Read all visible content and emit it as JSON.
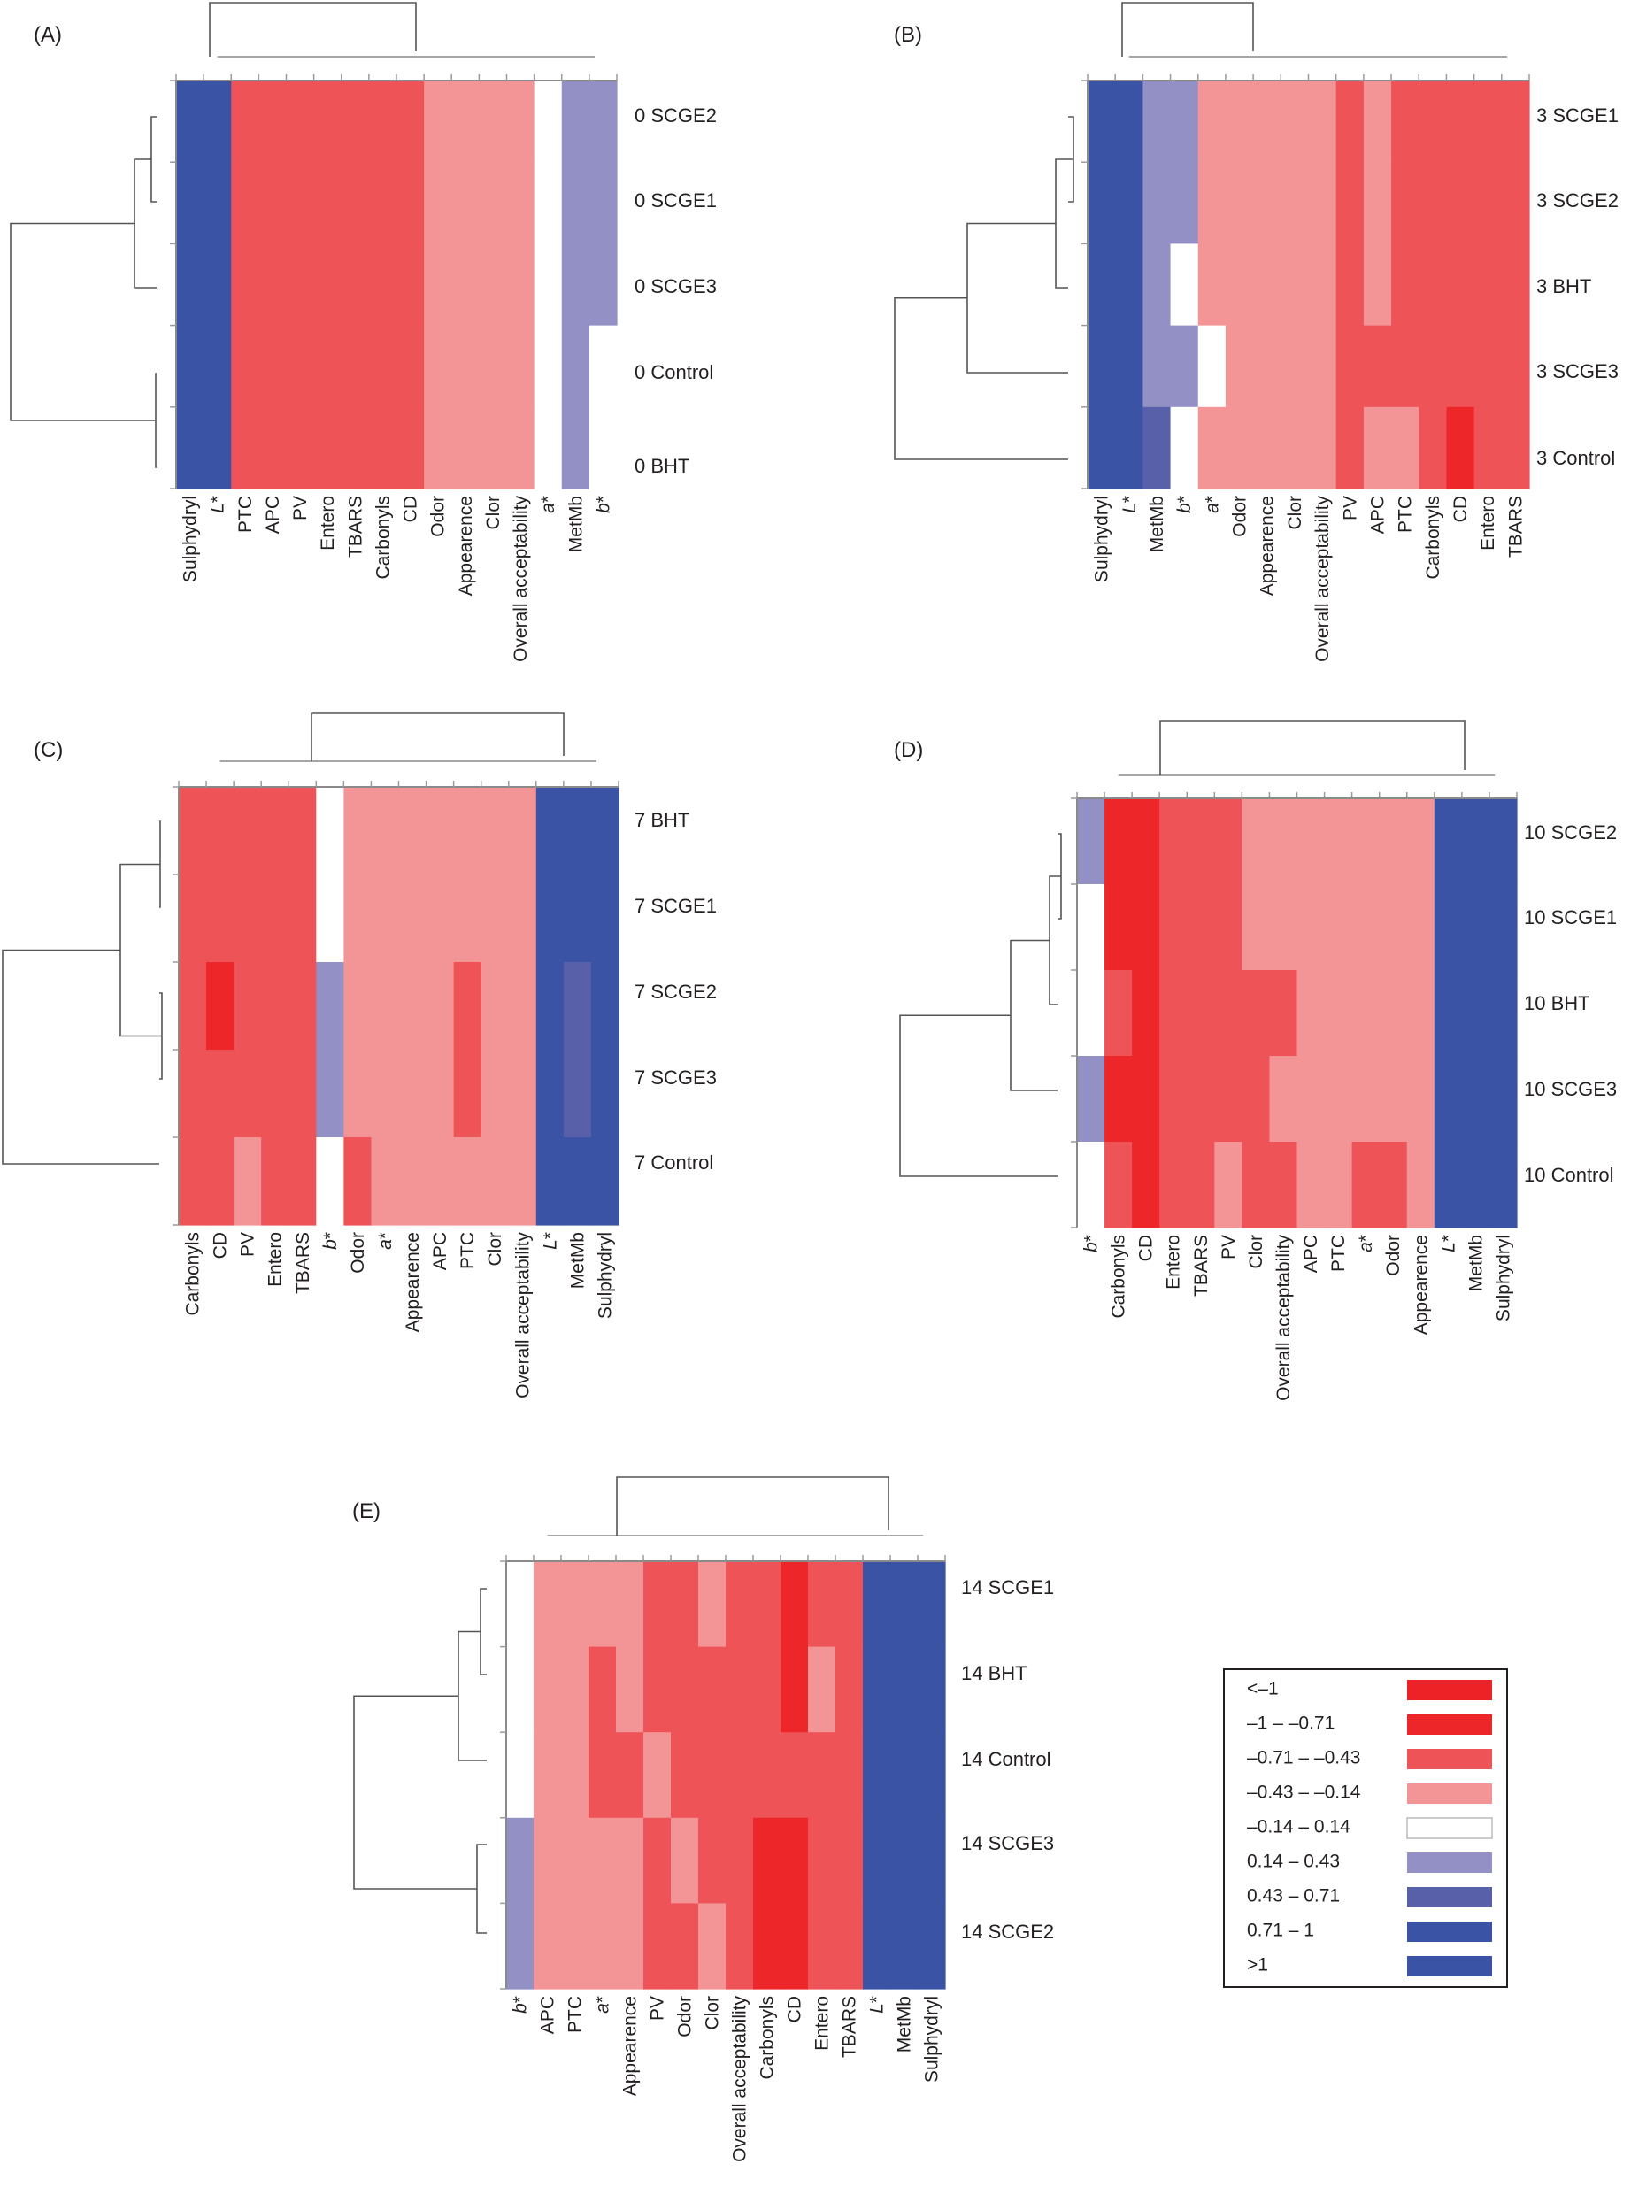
{
  "legend": {
    "bins": [
      {
        "label": "<–1",
        "color": "#ec2227"
      },
      {
        "label": "–1 – –0.71",
        "color": "#ec2629"
      },
      {
        "label": "–0.71 – –0.43",
        "color": "#ee5357"
      },
      {
        "label": "–0.43 – –0.14",
        "color": "#f39496"
      },
      {
        "label": "–0.14 – 0.14",
        "color": "#ffffff"
      },
      {
        "label": "0.14 – 0.43",
        "color": "#9390c6"
      },
      {
        "label": "0.43 – 0.71",
        "color": "#5760a9"
      },
      {
        "label": "0.71 – 1",
        "color": "#3a53a4"
      },
      {
        "label": ">1",
        "color": "#3a53a4"
      }
    ]
  },
  "chart_data": [
    {
      "type": "heatmap",
      "title": "(A)",
      "value_encoding": "legend bin index (0 = <-1 ... 8 = >1)",
      "columns": [
        "Sulphydryl",
        "L*",
        "PTC",
        "APC",
        "PV",
        "Entero",
        "TBARS",
        "Carbonyls",
        "CD",
        "Odor",
        "Appearence",
        "Clor",
        "Overall acceptability",
        "a*",
        "MetMb",
        "b*"
      ],
      "rows": [
        "0 SCGE2",
        "0 SCGE1",
        "0 SCGE3",
        "0 Control",
        "0 BHT"
      ],
      "values": [
        [
          7,
          7,
          2,
          2,
          2,
          2,
          2,
          2,
          2,
          3,
          3,
          3,
          3,
          4,
          5,
          5
        ],
        [
          7,
          7,
          2,
          2,
          2,
          2,
          2,
          2,
          2,
          3,
          3,
          3,
          3,
          4,
          5,
          5
        ],
        [
          7,
          7,
          2,
          2,
          2,
          2,
          2,
          2,
          2,
          3,
          3,
          3,
          3,
          4,
          5,
          5
        ],
        [
          7,
          7,
          2,
          2,
          2,
          2,
          2,
          2,
          2,
          3,
          3,
          3,
          3,
          4,
          5,
          4
        ],
        [
          7,
          7,
          2,
          2,
          2,
          2,
          2,
          2,
          2,
          3,
          3,
          3,
          3,
          4,
          5,
          4
        ]
      ]
    },
    {
      "type": "heatmap",
      "title": "(B)",
      "value_encoding": "legend bin index (0 = <-1 ... 8 = >1)",
      "columns": [
        "Sulphydryl",
        "L*",
        "MetMb",
        "b*",
        "a*",
        "Odor",
        "Appearence",
        "Clor",
        "Overall acceptability",
        "PV",
        "APC",
        "PTC",
        "Carbonyls",
        "CD",
        "Entero",
        "TBARS"
      ],
      "rows": [
        "3 SCGE1",
        "3 SCGE2",
        "3 BHT",
        "3 SCGE3",
        "3 Control"
      ],
      "values": [
        [
          7,
          7,
          5,
          5,
          3,
          3,
          3,
          3,
          3,
          2,
          3,
          2,
          2,
          2,
          2,
          2
        ],
        [
          7,
          7,
          5,
          5,
          3,
          3,
          3,
          3,
          3,
          2,
          3,
          2,
          2,
          2,
          2,
          2
        ],
        [
          7,
          7,
          5,
          4,
          3,
          3,
          3,
          3,
          3,
          2,
          3,
          2,
          2,
          2,
          2,
          2
        ],
        [
          7,
          7,
          5,
          5,
          4,
          3,
          3,
          3,
          3,
          2,
          2,
          2,
          2,
          2,
          2,
          2
        ],
        [
          7,
          7,
          6,
          4,
          3,
          3,
          3,
          3,
          3,
          2,
          3,
          3,
          2,
          1,
          2,
          2
        ]
      ]
    },
    {
      "type": "heatmap",
      "title": "(C)",
      "value_encoding": "legend bin index (0 = <-1 ... 8 = >1)",
      "columns": [
        "Carbonyls",
        "CD",
        "PV",
        "Entero",
        "TBARS",
        "b*",
        "Odor",
        "a*",
        "Appearence",
        "APC",
        "PTC",
        "Clor",
        "Overall acceptability",
        "L*",
        "MetMb",
        "Sulphydryl"
      ],
      "rows": [
        "7 BHT",
        "7 SCGE1",
        "7 SCGE2",
        "7 SCGE3",
        "7 Control"
      ],
      "values": [
        [
          2,
          2,
          2,
          2,
          2,
          4,
          3,
          3,
          3,
          3,
          3,
          3,
          3,
          7,
          7,
          7
        ],
        [
          2,
          2,
          2,
          2,
          2,
          4,
          3,
          3,
          3,
          3,
          3,
          3,
          3,
          7,
          7,
          7
        ],
        [
          2,
          1,
          2,
          2,
          2,
          5,
          3,
          3,
          3,
          3,
          2,
          3,
          3,
          7,
          6,
          7
        ],
        [
          2,
          2,
          2,
          2,
          2,
          5,
          3,
          3,
          3,
          3,
          2,
          3,
          3,
          7,
          6,
          7
        ],
        [
          2,
          2,
          3,
          2,
          2,
          4,
          2,
          3,
          3,
          3,
          3,
          3,
          3,
          7,
          7,
          7
        ]
      ]
    },
    {
      "type": "heatmap",
      "title": "(D)",
      "value_encoding": "legend bin index (0 = <-1 ... 8 = >1)",
      "columns": [
        "b*",
        "Carbonyls",
        "CD",
        "Entero",
        "TBARS",
        "PV",
        "Clor",
        "Overall acceptability",
        "APC",
        "PTC",
        "a*",
        "Odor",
        "Appearence",
        "L*",
        "MetMb",
        "Sulphydryl"
      ],
      "rows": [
        "10 SCGE2",
        "10 SCGE1",
        "10 BHT",
        "10 SCGE3",
        "10 Control"
      ],
      "values": [
        [
          5,
          1,
          1,
          2,
          2,
          2,
          3,
          3,
          3,
          3,
          3,
          3,
          3,
          7,
          7,
          7
        ],
        [
          4,
          1,
          1,
          2,
          2,
          2,
          3,
          3,
          3,
          3,
          3,
          3,
          3,
          7,
          7,
          7
        ],
        [
          4,
          2,
          1,
          2,
          2,
          2,
          2,
          2,
          3,
          3,
          3,
          3,
          3,
          7,
          7,
          7
        ],
        [
          5,
          1,
          1,
          2,
          2,
          2,
          2,
          3,
          3,
          3,
          3,
          3,
          3,
          7,
          7,
          7
        ],
        [
          4,
          2,
          1,
          2,
          2,
          3,
          2,
          2,
          3,
          3,
          2,
          2,
          3,
          7,
          7,
          7
        ]
      ]
    },
    {
      "type": "heatmap",
      "title": "(E)",
      "value_encoding": "legend bin index (0 = <-1 ... 8 = >1)",
      "columns": [
        "b*",
        "APC",
        "PTC",
        "a*",
        "Appearence",
        "PV",
        "Odor",
        "Clor",
        "Overall acceptability",
        "Carbonyls",
        "CD",
        "Entero",
        "TBARS",
        "L*",
        "MetMb",
        "Sulphydryl"
      ],
      "rows": [
        "14 SCGE1",
        "14 BHT",
        "14 Control",
        "14 SCGE3",
        "14 SCGE2"
      ],
      "values": [
        [
          4,
          3,
          3,
          3,
          3,
          2,
          2,
          3,
          2,
          2,
          1,
          2,
          2,
          7,
          7,
          7
        ],
        [
          4,
          3,
          3,
          2,
          3,
          2,
          2,
          2,
          2,
          2,
          1,
          3,
          2,
          7,
          7,
          7
        ],
        [
          4,
          3,
          3,
          2,
          2,
          3,
          2,
          2,
          2,
          2,
          2,
          2,
          2,
          7,
          7,
          7
        ],
        [
          5,
          3,
          3,
          3,
          3,
          2,
          3,
          2,
          2,
          1,
          1,
          2,
          2,
          7,
          7,
          7
        ],
        [
          5,
          3,
          3,
          3,
          3,
          2,
          2,
          3,
          2,
          1,
          1,
          2,
          2,
          7,
          7,
          7
        ]
      ]
    }
  ]
}
